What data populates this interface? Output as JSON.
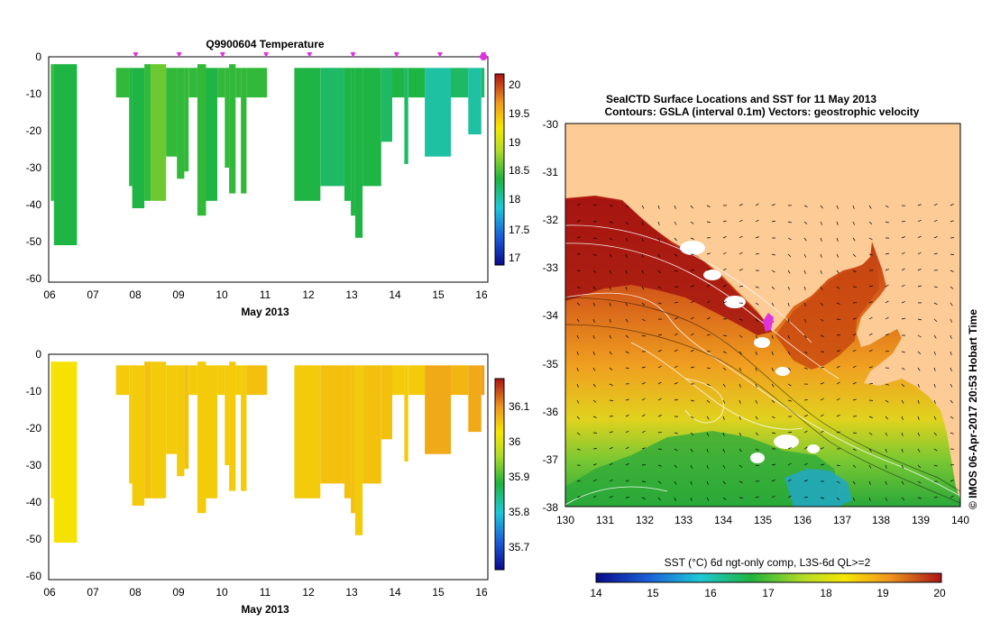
{
  "chart_data": [
    {
      "type": "heatmap",
      "id": "temp",
      "title": "Q9900604  Temperature",
      "xlabel": "May 2013",
      "x_ticks": [
        "06",
        "07",
        "08",
        "09",
        "10",
        "11",
        "12",
        "13",
        "14",
        "15",
        "16"
      ],
      "xlim": [
        6,
        16.1
      ],
      "y_ticks": [
        "0",
        "-10",
        "-20",
        "-30",
        "-40",
        "-50",
        "-60"
      ],
      "ylim": [
        -61,
        0
      ],
      "colorbar": {
        "ticks": [
          "17",
          "17.5",
          "18",
          "18.5",
          "19",
          "19.5",
          "20"
        ],
        "range": [
          16.8,
          20.2
        ]
      },
      "markers_x": [
        8,
        9,
        10,
        11,
        12,
        13,
        14,
        15,
        16
      ],
      "columns": [
        {
          "x0": 6.05,
          "x1": 6.12,
          "z0": -2,
          "z1": -39,
          "v": 18.4
        },
        {
          "x0": 6.12,
          "x1": 6.65,
          "z0": -2,
          "z1": -51,
          "v": 18.3
        },
        {
          "x0": 7.55,
          "x1": 7.85,
          "z0": -3,
          "z1": -11,
          "v": 18.4
        },
        {
          "x0": 7.85,
          "x1": 7.92,
          "z0": -3,
          "z1": -35,
          "v": 18.3
        },
        {
          "x0": 7.92,
          "x1": 8.2,
          "z0": -3,
          "z1": -41,
          "v": 18.3
        },
        {
          "x0": 8.2,
          "x1": 8.35,
          "z0": -2,
          "z1": -39,
          "v": 18.4
        },
        {
          "x0": 8.35,
          "x1": 8.7,
          "z0": -2,
          "z1": -39,
          "v": 18.6
        },
        {
          "x0": 8.7,
          "x1": 8.95,
          "z0": -3,
          "z1": -27,
          "v": 18.4
        },
        {
          "x0": 8.95,
          "x1": 9.12,
          "z0": -3,
          "z1": -33,
          "v": 18.4
        },
        {
          "x0": 9.12,
          "x1": 9.22,
          "z0": -3,
          "z1": -31,
          "v": 18.4
        },
        {
          "x0": 9.22,
          "x1": 9.42,
          "z0": -3,
          "z1": -11,
          "v": 18.4
        },
        {
          "x0": 9.42,
          "x1": 9.62,
          "z0": -2,
          "z1": -43,
          "v": 18.4
        },
        {
          "x0": 9.62,
          "x1": 9.88,
          "z0": -3,
          "z1": -39,
          "v": 18.3
        },
        {
          "x0": 9.88,
          "x1": 10.05,
          "z0": -3,
          "z1": -11,
          "v": 18.4
        },
        {
          "x0": 10.05,
          "x1": 10.15,
          "z0": -3,
          "z1": -30,
          "v": 18.4
        },
        {
          "x0": 10.15,
          "x1": 10.3,
          "z0": -2,
          "z1": -37,
          "v": 18.4
        },
        {
          "x0": 10.3,
          "x1": 10.42,
          "z0": -3,
          "z1": -11,
          "v": 18.4
        },
        {
          "x0": 10.42,
          "x1": 10.55,
          "z0": -3,
          "z1": -37,
          "v": 18.4
        },
        {
          "x0": 10.55,
          "x1": 11.02,
          "z0": -3,
          "z1": -11,
          "v": 18.4
        },
        {
          "x0": 11.65,
          "x1": 12.25,
          "z0": -3,
          "z1": -39,
          "v": 18.3
        },
        {
          "x0": 12.25,
          "x1": 12.8,
          "z0": -3,
          "z1": -35,
          "v": 18.2
        },
        {
          "x0": 12.8,
          "x1": 12.95,
          "z0": -3,
          "z1": -39,
          "v": 18.3
        },
        {
          "x0": 12.95,
          "x1": 13.05,
          "z0": -3,
          "z1": -43,
          "v": 18.3
        },
        {
          "x0": 13.05,
          "x1": 13.22,
          "z0": -3,
          "z1": -49,
          "v": 18.3
        },
        {
          "x0": 13.22,
          "x1": 13.65,
          "z0": -3,
          "z1": -35,
          "v": 18.3
        },
        {
          "x0": 13.65,
          "x1": 13.9,
          "z0": -3,
          "z1": -23,
          "v": 18.2
        },
        {
          "x0": 13.9,
          "x1": 14.18,
          "z0": -3,
          "z1": -11,
          "v": 18.3
        },
        {
          "x0": 14.18,
          "x1": 14.27,
          "z0": -3,
          "z1": -29,
          "v": 18.2
        },
        {
          "x0": 14.27,
          "x1": 14.65,
          "z0": -3,
          "z1": -11,
          "v": 18.3
        },
        {
          "x0": 14.65,
          "x1": 15.25,
          "z0": -3,
          "z1": -27,
          "v": 18.0
        },
        {
          "x0": 15.25,
          "x1": 15.65,
          "z0": -3,
          "z1": -11,
          "v": 18.2
        },
        {
          "x0": 15.65,
          "x1": 15.95,
          "z0": -3,
          "z1": -21,
          "v": 18.0
        },
        {
          "x0": 15.95,
          "x1": 16.02,
          "z0": -3,
          "z1": -11,
          "v": 18.2
        }
      ]
    },
    {
      "type": "heatmap",
      "id": "salinity",
      "title": "",
      "xlabel": "May 2013",
      "x_ticks": [
        "06",
        "07",
        "08",
        "09",
        "10",
        "11",
        "12",
        "13",
        "14",
        "15",
        "16"
      ],
      "xlim": [
        6,
        16.1
      ],
      "y_ticks": [
        "0",
        "-10",
        "-20",
        "-30",
        "-40",
        "-50",
        "-60"
      ],
      "ylim": [
        -61,
        0
      ],
      "colorbar": {
        "ticks": [
          "35.7",
          "35.8",
          "35.9",
          "36",
          "36.1"
        ],
        "range": [
          35.63,
          36.18
        ]
      },
      "columns": [
        {
          "x0": 6.05,
          "x1": 6.12,
          "z0": -2,
          "z1": -39,
          "v": 36.03
        },
        {
          "x0": 6.12,
          "x1": 6.65,
          "z0": -2,
          "z1": -51,
          "v": 36.03
        },
        {
          "x0": 7.55,
          "x1": 7.85,
          "z0": -3,
          "z1": -11,
          "v": 36.05
        },
        {
          "x0": 7.85,
          "x1": 7.92,
          "z0": -3,
          "z1": -35,
          "v": 36.05
        },
        {
          "x0": 7.92,
          "x1": 8.2,
          "z0": -3,
          "z1": -41,
          "v": 36.05
        },
        {
          "x0": 8.2,
          "x1": 8.35,
          "z0": -2,
          "z1": -39,
          "v": 36.06
        },
        {
          "x0": 8.35,
          "x1": 8.7,
          "z0": -2,
          "z1": -39,
          "v": 36.05
        },
        {
          "x0": 8.7,
          "x1": 8.95,
          "z0": -3,
          "z1": -27,
          "v": 36.05
        },
        {
          "x0": 8.95,
          "x1": 9.12,
          "z0": -3,
          "z1": -33,
          "v": 36.05
        },
        {
          "x0": 9.12,
          "x1": 9.22,
          "z0": -3,
          "z1": -31,
          "v": 36.06
        },
        {
          "x0": 9.22,
          "x1": 9.42,
          "z0": -3,
          "z1": -11,
          "v": 36.05
        },
        {
          "x0": 9.42,
          "x1": 9.62,
          "z0": -2,
          "z1": -43,
          "v": 36.05
        },
        {
          "x0": 9.62,
          "x1": 9.88,
          "z0": -3,
          "z1": -39,
          "v": 36.05
        },
        {
          "x0": 9.88,
          "x1": 10.05,
          "z0": -3,
          "z1": -11,
          "v": 36.05
        },
        {
          "x0": 10.05,
          "x1": 10.15,
          "z0": -3,
          "z1": -30,
          "v": 36.05
        },
        {
          "x0": 10.15,
          "x1": 10.3,
          "z0": -2,
          "z1": -37,
          "v": 36.05
        },
        {
          "x0": 10.3,
          "x1": 10.42,
          "z0": -3,
          "z1": -11,
          "v": 36.05
        },
        {
          "x0": 10.42,
          "x1": 10.55,
          "z0": -3,
          "z1": -37,
          "v": 36.05
        },
        {
          "x0": 10.55,
          "x1": 11.02,
          "z0": -3,
          "z1": -11,
          "v": 36.06
        },
        {
          "x0": 11.65,
          "x1": 12.25,
          "z0": -3,
          "z1": -39,
          "v": 36.05
        },
        {
          "x0": 12.25,
          "x1": 12.8,
          "z0": -3,
          "z1": -35,
          "v": 36.06
        },
        {
          "x0": 12.8,
          "x1": 12.95,
          "z0": -3,
          "z1": -39,
          "v": 36.06
        },
        {
          "x0": 12.95,
          "x1": 13.05,
          "z0": -3,
          "z1": -43,
          "v": 36.06
        },
        {
          "x0": 13.05,
          "x1": 13.22,
          "z0": -3,
          "z1": -49,
          "v": 36.05
        },
        {
          "x0": 13.22,
          "x1": 13.65,
          "z0": -3,
          "z1": -35,
          "v": 36.06
        },
        {
          "x0": 13.65,
          "x1": 13.9,
          "z0": -3,
          "z1": -23,
          "v": 36.06
        },
        {
          "x0": 13.9,
          "x1": 14.18,
          "z0": -3,
          "z1": -11,
          "v": 36.05
        },
        {
          "x0": 14.18,
          "x1": 14.27,
          "z0": -3,
          "z1": -29,
          "v": 36.05
        },
        {
          "x0": 14.27,
          "x1": 14.65,
          "z0": -3,
          "z1": -11,
          "v": 36.05
        },
        {
          "x0": 14.65,
          "x1": 15.25,
          "z0": -3,
          "z1": -27,
          "v": 36.08
        },
        {
          "x0": 15.25,
          "x1": 15.65,
          "z0": -3,
          "z1": -11,
          "v": 36.07
        },
        {
          "x0": 15.65,
          "x1": 15.95,
          "z0": -3,
          "z1": -21,
          "v": 36.08
        },
        {
          "x0": 15.95,
          "x1": 16.02,
          "z0": -3,
          "z1": -11,
          "v": 36.09
        }
      ]
    },
    {
      "type": "heatmap",
      "id": "map",
      "title": "SeaICTD Surface Locations and SST for 11 May 2013",
      "subtitle": "Contours: GSLA (interval 0.1m) Vectors: geostrophic velocity",
      "x_ticks": [
        "130",
        "131",
        "132",
        "133",
        "134",
        "135",
        "136",
        "137",
        "138",
        "139",
        "140"
      ],
      "xlim": [
        130,
        140
      ],
      "y_ticks": [
        "-30",
        "-31",
        "-32",
        "-33",
        "-34",
        "-35",
        "-36",
        "-37",
        "-38"
      ],
      "ylim": [
        -38,
        -30
      ],
      "colorbar": {
        "label": "SST (°C) 6d ngt-only comp, L3S-6d QL>=2",
        "ticks": [
          "14",
          "15",
          "16",
          "17",
          "18",
          "19",
          "20"
        ],
        "range": [
          14,
          20
        ]
      },
      "side_label": "© IMOS 06-Apr-2017 20:53 Hobart Time",
      "cast_location": [
        135.15,
        -34.2
      ]
    }
  ],
  "colors": {
    "land": "#fccb96",
    "white": "#ffffff",
    "marker": "#e033e0",
    "contour": "#ffffff"
  }
}
